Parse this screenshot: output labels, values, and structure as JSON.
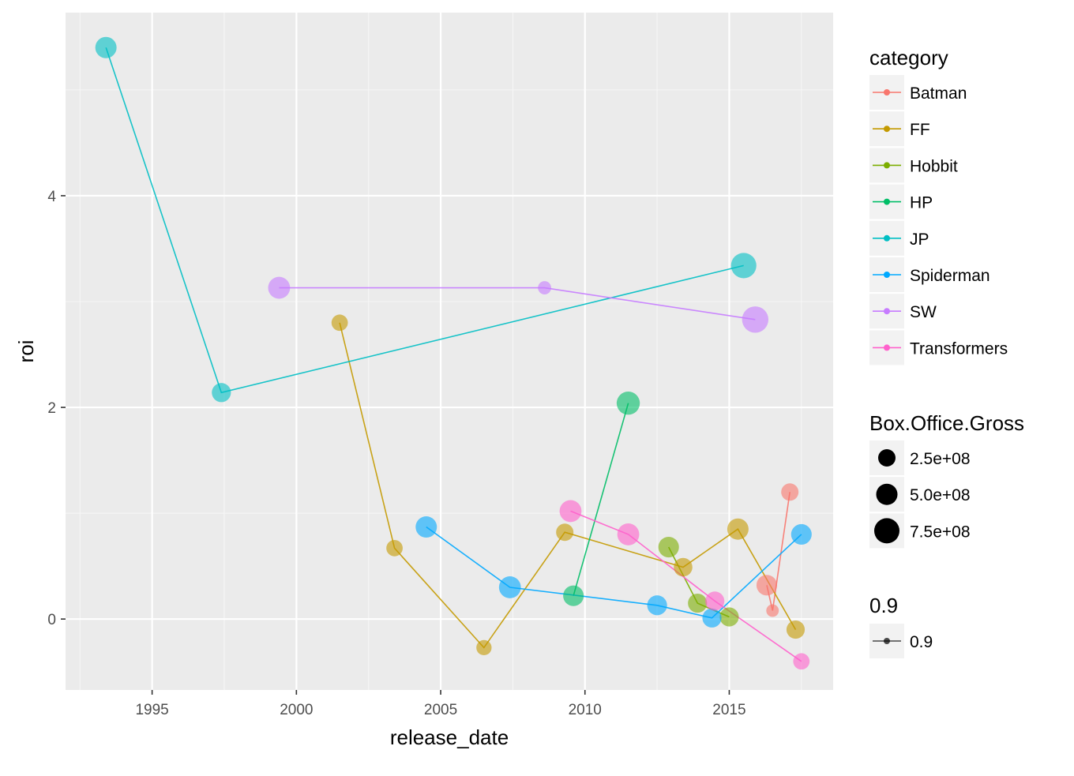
{
  "chart_data": {
    "type": "line",
    "xlabel": "release_date",
    "ylabel": "roi",
    "xlim": [
      1992.0,
      2018.6
    ],
    "ylim": [
      -0.67,
      5.73
    ],
    "x_ticks": [
      1995,
      2000,
      2005,
      2010,
      2015
    ],
    "x_tick_labels": [
      "1995",
      "2000",
      "2005",
      "2010",
      "2015"
    ],
    "y_ticks": [
      0,
      2,
      4
    ],
    "y_tick_labels": [
      "0",
      "2",
      "4"
    ],
    "grid": true,
    "legend_position": "right",
    "series": [
      {
        "name": "Batman",
        "color": "#F8766D",
        "points": [
          {
            "x": 2016.5,
            "y": 0.08,
            "size": 0.06
          },
          {
            "x": 2017.1,
            "y": 1.2,
            "size": 0.25
          },
          {
            "x": 2016.3,
            "y": 0.32,
            "size": 0.45
          }
        ]
      },
      {
        "name": "FF",
        "color": "#C49A00",
        "points": [
          {
            "x": 2001.5,
            "y": 2.8,
            "size": 0.2
          },
          {
            "x": 2003.4,
            "y": 0.67,
            "size": 0.2
          },
          {
            "x": 2006.5,
            "y": -0.27,
            "size": 0.15
          },
          {
            "x": 2009.3,
            "y": 0.82,
            "size": 0.25
          },
          {
            "x": 2013.4,
            "y": 0.49,
            "size": 0.32
          },
          {
            "x": 2015.3,
            "y": 0.85,
            "size": 0.5
          },
          {
            "x": 2017.3,
            "y": -0.1,
            "size": 0.3
          }
        ]
      },
      {
        "name": "Hobbit",
        "color": "#7CAE00",
        "points": [
          {
            "x": 2012.9,
            "y": 0.68,
            "size": 0.45
          },
          {
            "x": 2013.9,
            "y": 0.15,
            "size": 0.35
          },
          {
            "x": 2015.0,
            "y": 0.02,
            "size": 0.35
          }
        ]
      },
      {
        "name": "HP",
        "color": "#00BE67",
        "points": [
          {
            "x": 2009.6,
            "y": 0.22,
            "size": 0.45
          },
          {
            "x": 2011.5,
            "y": 2.04,
            "size": 0.65
          }
        ]
      },
      {
        "name": "JP",
        "color": "#00BFC4",
        "points": [
          {
            "x": 1993.4,
            "y": 5.4,
            "size": 0.5
          },
          {
            "x": 1997.4,
            "y": 2.14,
            "size": 0.35
          },
          {
            "x": 2015.5,
            "y": 3.34,
            "size": 0.85
          }
        ]
      },
      {
        "name": "Spiderman",
        "color": "#00A9FF",
        "points": [
          {
            "x": 2004.5,
            "y": 0.87,
            "size": 0.5
          },
          {
            "x": 2007.4,
            "y": 0.3,
            "size": 0.55
          },
          {
            "x": 2012.5,
            "y": 0.13,
            "size": 0.4
          },
          {
            "x": 2014.4,
            "y": 0.01,
            "size": 0.35
          },
          {
            "x": 2017.5,
            "y": 0.8,
            "size": 0.45
          }
        ]
      },
      {
        "name": "SW",
        "color": "#C77CFF",
        "points": [
          {
            "x": 1999.4,
            "y": 3.13,
            "size": 0.55
          },
          {
            "x": 2008.6,
            "y": 3.13,
            "size": 0.08
          },
          {
            "x": 2015.9,
            "y": 2.83,
            "size": 0.95
          }
        ]
      },
      {
        "name": "Transformers",
        "color": "#FF61CC",
        "points": [
          {
            "x": 2009.5,
            "y": 1.02,
            "size": 0.55
          },
          {
            "x": 2011.5,
            "y": 0.8,
            "size": 0.55
          },
          {
            "x": 2014.5,
            "y": 0.17,
            "size": 0.35
          },
          {
            "x": 2017.5,
            "y": -0.4,
            "size": 0.2
          }
        ]
      }
    ],
    "legends": {
      "category": {
        "title": "category",
        "entries": [
          "Batman",
          "FF",
          "Hobbit",
          "HP",
          "JP",
          "Spiderman",
          "SW",
          "Transformers"
        ]
      },
      "size": {
        "title": "Box.Office.Gross",
        "entries": [
          "2.5e+08",
          "5.0e+08",
          "7.5e+08"
        ],
        "values": [
          0.25,
          0.5,
          0.75
        ]
      },
      "alpha": {
        "title": "0.9",
        "entries": [
          "0.9"
        ]
      }
    }
  }
}
